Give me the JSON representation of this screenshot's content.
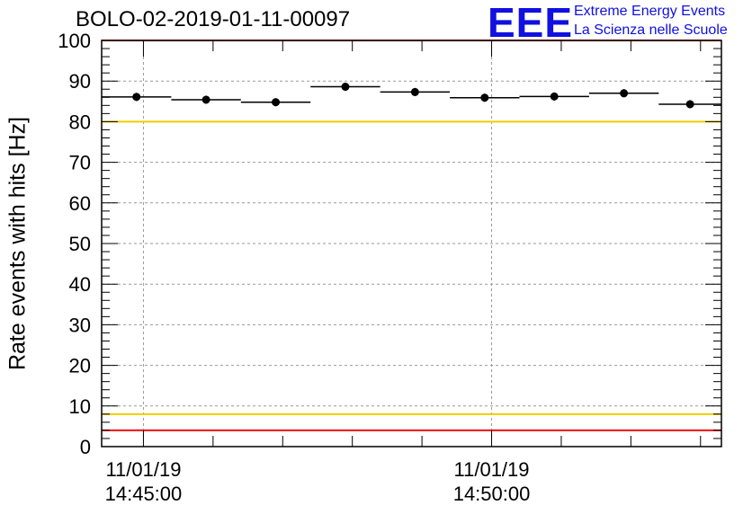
{
  "chart_data": {
    "type": "scatter",
    "title": "BOLO-02-2019-01-11-00097",
    "ylabel": "Rate events with hits [Hz]",
    "xlabel": "",
    "ylim": [
      0,
      100
    ],
    "yticks": [
      "0",
      "10",
      "20",
      "30",
      "40",
      "50",
      "60",
      "70",
      "80",
      "90",
      "100"
    ],
    "xtick_labels": [
      {
        "date": "11/01/19",
        "time": "14:45:00",
        "minutes": 0
      },
      {
        "date": "11/01/19",
        "time": "14:50:00",
        "minutes": 5
      }
    ],
    "xlim_minutes": [
      -0.6,
      8.3
    ],
    "grid": true,
    "points": [
      {
        "x_start": -0.6,
        "x_end": 0.4,
        "y": 86.1,
        "err": 1.0
      },
      {
        "x_start": 0.4,
        "x_end": 1.4,
        "y": 85.4,
        "err": 1.0
      },
      {
        "x_start": 1.4,
        "x_end": 2.4,
        "y": 84.8,
        "err": 1.0
      },
      {
        "x_start": 2.4,
        "x_end": 3.4,
        "y": 88.6,
        "err": 1.0
      },
      {
        "x_start": 3.4,
        "x_end": 4.4,
        "y": 87.3,
        "err": 1.0
      },
      {
        "x_start": 4.4,
        "x_end": 5.4,
        "y": 85.9,
        "err": 1.0
      },
      {
        "x_start": 5.4,
        "x_end": 6.4,
        "y": 86.2,
        "err": 1.0
      },
      {
        "x_start": 6.4,
        "x_end": 7.4,
        "y": 87.0,
        "err": 1.0
      },
      {
        "x_start": 7.4,
        "x_end": 8.3,
        "y": 84.3,
        "err": 1.0
      }
    ],
    "reference_lines": [
      {
        "y": 100,
        "color": "#ee1111"
      },
      {
        "y": 80,
        "color": "#f2cc00"
      },
      {
        "y": 8,
        "color": "#f2cc00"
      },
      {
        "y": 4,
        "color": "#ee1111"
      }
    ]
  },
  "logo": {
    "mark": "EEE",
    "line1": "Extreme Energy Events",
    "line2": "La Scienza nelle Scuole"
  }
}
